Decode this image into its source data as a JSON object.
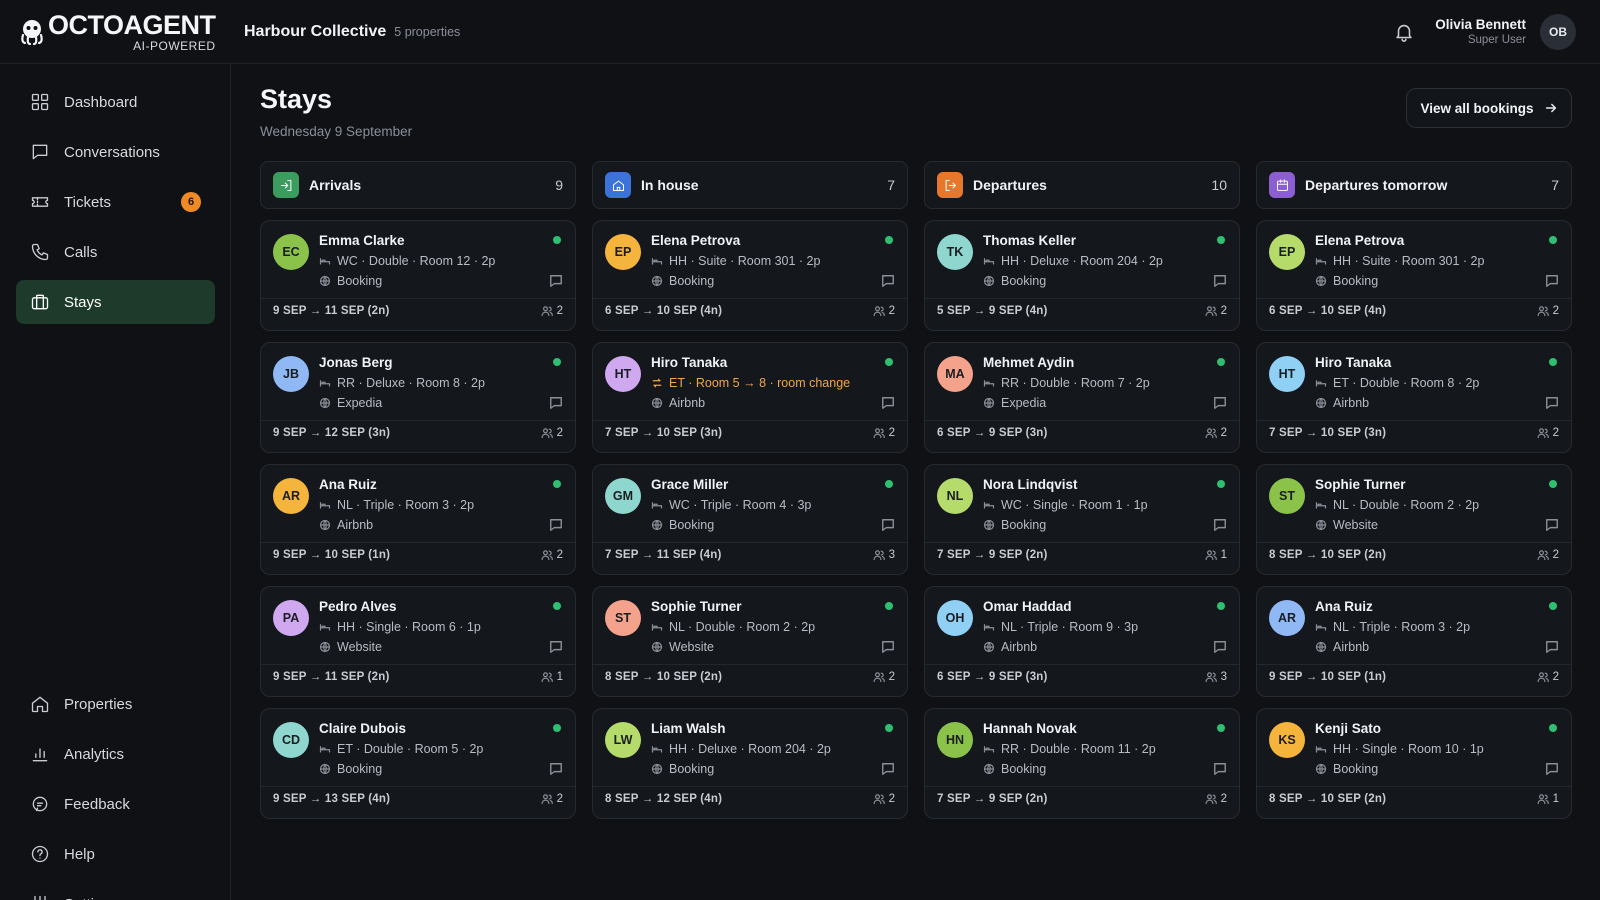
{
  "app": {
    "logo_name": "OCTOAGENT",
    "logo_sub": "AI-POWERED",
    "org_name": "Harbour Collective",
    "org_count": "5 properties",
    "user_name": "Olivia Bennett",
    "user_role": "Super User",
    "user_initials": "OB"
  },
  "sidebar": {
    "top": [
      {
        "label": "Dashboard",
        "icon": "grid-icon"
      },
      {
        "label": "Conversations",
        "icon": "message-icon"
      },
      {
        "label": "Tickets",
        "icon": "ticket-icon",
        "badge": "6"
      },
      {
        "label": "Calls",
        "icon": "phone-icon"
      },
      {
        "label": "Stays",
        "icon": "suitcase-icon",
        "active": true
      }
    ],
    "bottom": [
      {
        "label": "Properties",
        "icon": "home-icon"
      },
      {
        "label": "Analytics",
        "icon": "bar-chart-icon"
      },
      {
        "label": "Feedback",
        "icon": "feedback-icon"
      },
      {
        "label": "Help",
        "icon": "help-icon"
      },
      {
        "label": "Settings",
        "icon": "sliders-icon"
      }
    ]
  },
  "page": {
    "title": "Stays",
    "date": "Wednesday 9 September",
    "view_all_label": "View all bookings"
  },
  "colors": {
    "arrivals": "#3b9d5d",
    "in_house": "#3b73d9",
    "departures": "#e7782b",
    "departures_tomorrow": "#8b5fd1",
    "status_dot": "#2fbf71",
    "active_nav": "#1d3a2b"
  },
  "columns": [
    {
      "title": "Arrivals",
      "count": "9",
      "icon": "arrow-in-icon",
      "color": "#3b9d5d",
      "cards": [
        {
          "initials": "EC",
          "name": "Emma Clarke",
          "room": "WC · Double · Room 12 · 2p",
          "source": "Booking",
          "dates": "9 SEP → 11 SEP (2n)",
          "guests": "2",
          "avatar": "#8bc34a"
        },
        {
          "initials": "JB",
          "name": "Jonas Berg",
          "room": "RR · Deluxe · Room 8 · 2p",
          "source": "Expedia",
          "dates": "9 SEP → 12 SEP (3n)",
          "guests": "2",
          "avatar": "#90b8f5"
        },
        {
          "initials": "AR",
          "name": "Ana Ruiz",
          "room": "NL · Triple · Room 3 · 2p",
          "source": "Airbnb",
          "dates": "9 SEP → 10 SEP (1n)",
          "guests": "2",
          "avatar": "#f5b53d"
        },
        {
          "initials": "PA",
          "name": "Pedro Alves",
          "room": "HH · Single · Room 6 · 1p",
          "source": "Website",
          "dates": "9 SEP → 11 SEP (2n)",
          "guests": "1",
          "avatar": "#cfa8f0"
        },
        {
          "initials": "CD",
          "name": "Claire Dubois",
          "room": "ET · Double · Room 5 · 2p",
          "source": "Booking",
          "dates": "9 SEP → 13 SEP (4n)",
          "guests": "2",
          "avatar": "#8fd6cf"
        }
      ]
    },
    {
      "title": "In house",
      "count": "7",
      "icon": "house-icon",
      "color": "#3b73d9",
      "cards": [
        {
          "initials": "EP",
          "name": "Elena Petrova",
          "room": "HH · Suite · Room 301 · 2p",
          "source": "Booking",
          "dates": "6 SEP → 10 SEP (4n)",
          "guests": "2",
          "avatar": "#f5b53d"
        },
        {
          "initials": "HT",
          "name": "Hiro Tanaka",
          "room": "ET · Room 5 → 8 · room change",
          "source": "Airbnb",
          "dates": "7 SEP → 10 SEP (3n)",
          "guests": "2",
          "avatar": "#cfa8f0",
          "change": true
        },
        {
          "initials": "GM",
          "name": "Grace Miller",
          "room": "WC · Triple · Room 4 · 3p",
          "source": "Booking",
          "dates": "7 SEP → 11 SEP (4n)",
          "guests": "3",
          "avatar": "#8fd6cf"
        },
        {
          "initials": "ST",
          "name": "Sophie Turner",
          "room": "NL · Double · Room 2 · 2p",
          "source": "Website",
          "dates": "8 SEP → 10 SEP (2n)",
          "guests": "2",
          "avatar": "#f4a28c"
        },
        {
          "initials": "LW",
          "name": "Liam Walsh",
          "room": "HH · Deluxe · Room 204 · 2p",
          "source": "Booking",
          "dates": "8 SEP → 12 SEP (4n)",
          "guests": "2",
          "avatar": "#b5db6a"
        }
      ]
    },
    {
      "title": "Departures",
      "count": "10",
      "icon": "arrow-out-icon",
      "color": "#e7782b",
      "cards": [
        {
          "initials": "TK",
          "name": "Thomas Keller",
          "room": "HH · Deluxe · Room 204 · 2p",
          "source": "Booking",
          "dates": "5 SEP → 9 SEP (4n)",
          "guests": "2",
          "avatar": "#8fd6cf"
        },
        {
          "initials": "MA",
          "name": "Mehmet Aydin",
          "room": "RR · Double · Room 7 · 2p",
          "source": "Expedia",
          "dates": "6 SEP → 9 SEP (3n)",
          "guests": "2",
          "avatar": "#f4a28c"
        },
        {
          "initials": "NL",
          "name": "Nora Lindqvist",
          "room": "WC · Single · Room 1 · 1p",
          "source": "Booking",
          "dates": "7 SEP → 9 SEP (2n)",
          "guests": "1",
          "avatar": "#b5db6a"
        },
        {
          "initials": "OH",
          "name": "Omar Haddad",
          "room": "NL · Triple · Room 9 · 3p",
          "source": "Airbnb",
          "dates": "6 SEP → 9 SEP (3n)",
          "guests": "3",
          "avatar": "#90d0f5"
        },
        {
          "initials": "HN",
          "name": "Hannah Novak",
          "room": "RR · Double · Room 11 · 2p",
          "source": "Booking",
          "dates": "7 SEP → 9 SEP (2n)",
          "guests": "2",
          "avatar": "#8bc34a"
        }
      ]
    },
    {
      "title": "Departures tomorrow",
      "count": "7",
      "icon": "calendar-icon",
      "color": "#8b5fd1",
      "cards": [
        {
          "initials": "EP",
          "name": "Elena Petrova",
          "room": "HH · Suite · Room 301 · 2p",
          "source": "Booking",
          "dates": "6 SEP → 10 SEP (4n)",
          "guests": "2",
          "avatar": "#b5db6a"
        },
        {
          "initials": "HT",
          "name": "Hiro Tanaka",
          "room": "ET · Double · Room 8 · 2p",
          "source": "Airbnb",
          "dates": "7 SEP → 10 SEP (3n)",
          "guests": "2",
          "avatar": "#90d0f5"
        },
        {
          "initials": "ST",
          "name": "Sophie Turner",
          "room": "NL · Double · Room 2 · 2p",
          "source": "Website",
          "dates": "8 SEP → 10 SEP (2n)",
          "guests": "2",
          "avatar": "#8bc34a"
        },
        {
          "initials": "AR",
          "name": "Ana Ruiz",
          "room": "NL · Triple · Room 3 · 2p",
          "source": "Airbnb",
          "dates": "9 SEP → 10 SEP (1n)",
          "guests": "2",
          "avatar": "#90b8f5"
        },
        {
          "initials": "KS",
          "name": "Kenji Sato",
          "room": "HH · Single · Room 10 · 1p",
          "source": "Booking",
          "dates": "8 SEP → 10 SEP (2n)",
          "guests": "1",
          "avatar": "#f5b53d"
        }
      ]
    }
  ]
}
